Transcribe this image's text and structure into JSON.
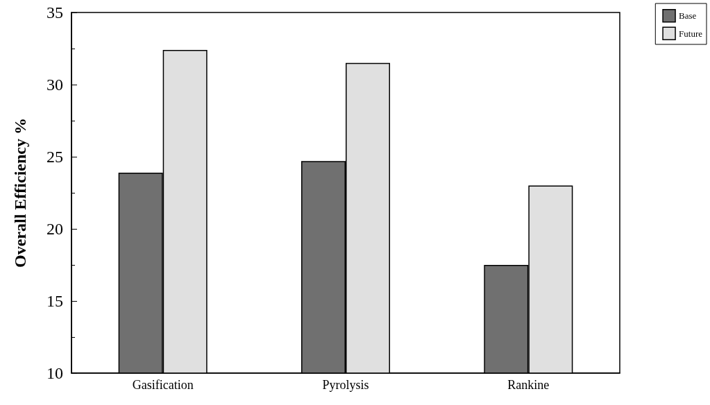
{
  "chart_data": {
    "type": "bar",
    "ylabel": "Overall Efficiency %",
    "categories": [
      "Gasification",
      "Pyrolysis",
      "Rankine"
    ],
    "series": [
      {
        "name": "Base",
        "color": "#707070",
        "values": [
          23.9,
          24.7,
          17.5
        ]
      },
      {
        "name": "Future",
        "color": "#e0e0e0",
        "values": [
          32.4,
          31.5,
          23.0
        ]
      }
    ],
    "ylim": [
      10,
      35
    ],
    "yticks": [
      10,
      15,
      20,
      25,
      30,
      35
    ],
    "grid": false,
    "legend": "top right"
  }
}
